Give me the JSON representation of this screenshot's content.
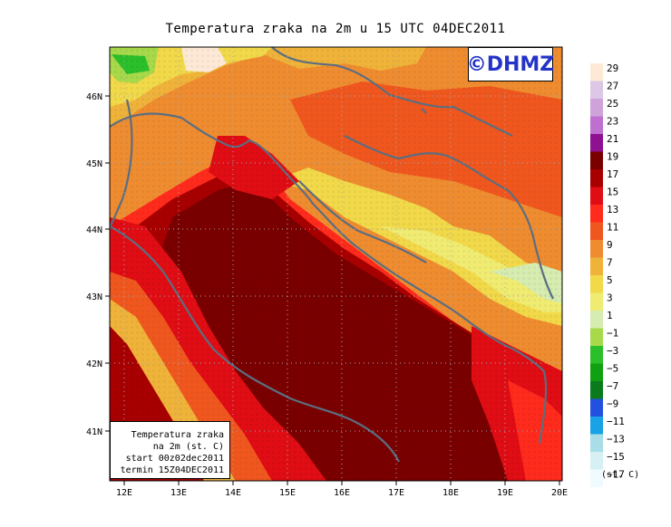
{
  "title": "Temperatura zraka na 2m u 15 UTC 04DEC2011",
  "copyright": "©DHMZ",
  "info": {
    "line1": "Temperatura zraka",
    "line2": "na 2m (st. C)",
    "line3": "start 00z02dec2011",
    "line4": "termin 15Z04DEC2011"
  },
  "axes": {
    "x_ticks": [
      "12E",
      "13E",
      "14E",
      "15E",
      "16E",
      "17E",
      "18E",
      "19E",
      "20E"
    ],
    "y_ticks": [
      "46N",
      "45N",
      "44N",
      "43N",
      "42N",
      "41N"
    ]
  },
  "legend": {
    "unit": "(st. C)",
    "levels": [
      {
        "label": "29",
        "color": "#fde9d5"
      },
      {
        "label": "27",
        "color": "#dcc7e6"
      },
      {
        "label": "25",
        "color": "#cfa3da"
      },
      {
        "label": "23",
        "color": "#be6fd0"
      },
      {
        "label": "21",
        "color": "#8d1190"
      },
      {
        "label": "19",
        "color": "#7a0000"
      },
      {
        "label": "17",
        "color": "#a80000"
      },
      {
        "label": "15",
        "color": "#e00d14"
      },
      {
        "label": "13",
        "color": "#ff2b1c"
      },
      {
        "label": "11",
        "color": "#f0571e"
      },
      {
        "label": "9",
        "color": "#ef8c30"
      },
      {
        "label": "7",
        "color": "#f0b33a"
      },
      {
        "label": "5",
        "color": "#f1d94a"
      },
      {
        "label": "3",
        "color": "#f0ec72"
      },
      {
        "label": "1",
        "color": "#d6ecb0"
      },
      {
        "label": "−1",
        "color": "#a7d94a"
      },
      {
        "label": "−3",
        "color": "#2bbf2b"
      },
      {
        "label": "−5",
        "color": "#11a011"
      },
      {
        "label": "−7",
        "color": "#0a7a1c"
      },
      {
        "label": "−9",
        "color": "#2251e0"
      },
      {
        "label": "−11",
        "color": "#1aa2e6"
      },
      {
        "label": "−13",
        "color": "#a9dde8"
      },
      {
        "label": "−15",
        "color": "#d6f0f4"
      },
      {
        "label": "−17",
        "color": "#f0fbff"
      }
    ]
  },
  "colors": {
    "coast": "#5b6e80",
    "sea_hot": "#a80000",
    "sea_deep": "#7a0000"
  }
}
